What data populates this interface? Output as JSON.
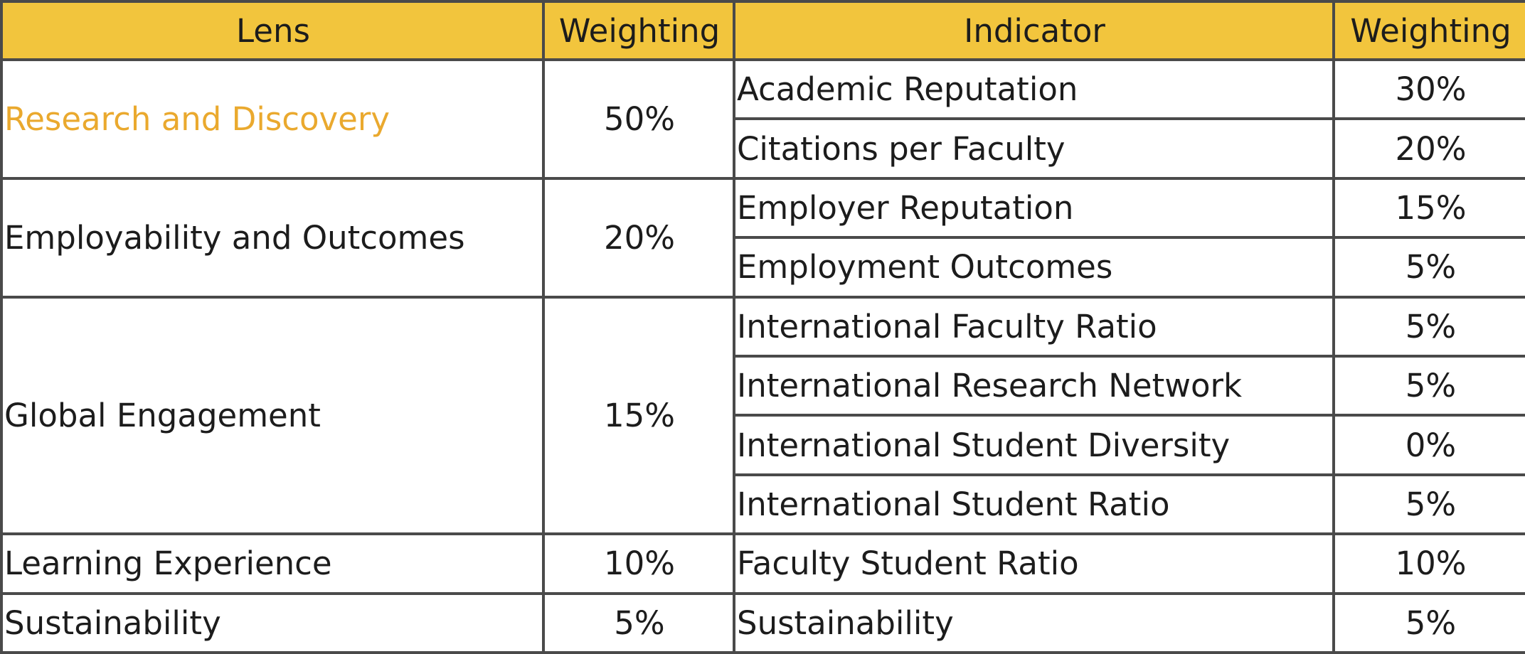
{
  "headers": {
    "lens": "Lens",
    "lens_weighting": "Weighting",
    "indicator": "Indicator",
    "indicator_weighting": "Weighting"
  },
  "lenses": [
    {
      "name": "Research and Discovery",
      "weighting": "50%",
      "indicators": [
        {
          "name": "Academic Reputation",
          "weighting": "30%"
        },
        {
          "name": "Citations per Faculty",
          "weighting": "20%"
        }
      ]
    },
    {
      "name": "Employability and Outcomes",
      "weighting": "20%",
      "indicators": [
        {
          "name": "Employer Reputation",
          "weighting": "15%"
        },
        {
          "name": "Employment Outcomes",
          "weighting": "5%"
        }
      ]
    },
    {
      "name": "Global Engagement",
      "weighting": "15%",
      "indicators": [
        {
          "name": "International Faculty Ratio",
          "weighting": "5%"
        },
        {
          "name": "International Research Network",
          "weighting": "5%"
        },
        {
          "name": "International Student Diversity",
          "weighting": "0%"
        },
        {
          "name": "International Student Ratio",
          "weighting": "5%"
        }
      ]
    },
    {
      "name": "Learning Experience",
      "weighting": "10%",
      "indicators": [
        {
          "name": "Faculty Student Ratio",
          "weighting": "10%"
        }
      ]
    },
    {
      "name": "Sustainability",
      "weighting": "5%",
      "indicators": [
        {
          "name": "Sustainability",
          "weighting": "5%"
        }
      ]
    }
  ],
  "colors": {
    "header_background": "#f2c53d",
    "link_text": "#eaa92e",
    "body_text": "#1c1c1c",
    "border": "#4a4a4a"
  }
}
